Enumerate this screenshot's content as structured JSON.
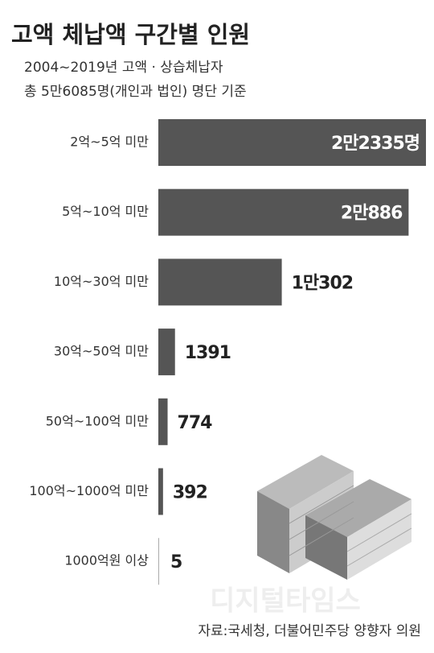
{
  "chart_data": {
    "type": "bar",
    "orientation": "horizontal",
    "title": "고액 체납액 구간별 인원",
    "subtitle": [
      "2004~2019년 고액 · 상습체납자",
      "총 5만6085명(개인과 법인) 명단 기준"
    ],
    "categories": [
      "2억~5억 미만",
      "5억~10억 미만",
      "10억~30억 미만",
      "30억~50억 미만",
      "50억~100억 미만",
      "100억~1000억 미만",
      "1000억원 이상"
    ],
    "values": [
      22335,
      20886,
      10302,
      1391,
      774,
      392,
      5
    ],
    "value_labels": [
      "2만2335명",
      "2만886",
      "1만302",
      "1391",
      "774",
      "392",
      "5"
    ],
    "color": "#555555",
    "source": "자료:국세청, 더불어민주당 양향자 의원",
    "watermark": "디지털타임스"
  }
}
